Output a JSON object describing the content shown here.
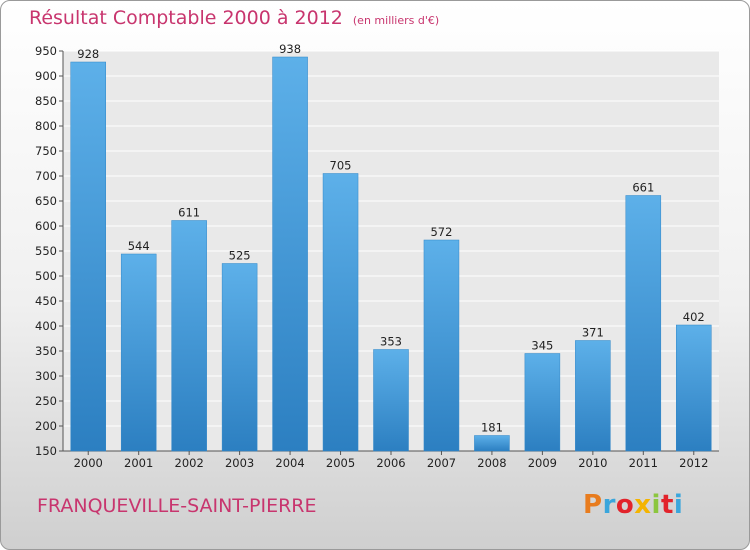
{
  "chart_data": {
    "type": "bar",
    "title": "Résultat Comptable 2000 à 2012",
    "subtitle": "(en milliers d'€)",
    "categories": [
      "2000",
      "2001",
      "2002",
      "2003",
      "2004",
      "2005",
      "2006",
      "2007",
      "2008",
      "2009",
      "2010",
      "2011",
      "2012"
    ],
    "values": [
      928,
      544,
      611,
      525,
      938,
      705,
      353,
      572,
      181,
      345,
      371,
      661,
      402
    ],
    "ylim": [
      150,
      950
    ],
    "yticks": [
      150,
      200,
      250,
      300,
      350,
      400,
      450,
      500,
      550,
      600,
      650,
      700,
      750,
      800,
      850,
      900,
      950
    ],
    "grid": true,
    "bar_color": "#3d91d3",
    "xlabel": "",
    "ylabel": ""
  },
  "location": "FRANQUEVILLE-SAINT-PIERRE",
  "brand": {
    "letters": [
      "P",
      "r",
      "o",
      "x",
      "i",
      "t",
      "i"
    ],
    "colors": [
      "#e87c1e",
      "#3aa6dc",
      "#e2232b",
      "#f4b400",
      "#8cc63f",
      "#e2232b",
      "#3aa6dc"
    ]
  }
}
